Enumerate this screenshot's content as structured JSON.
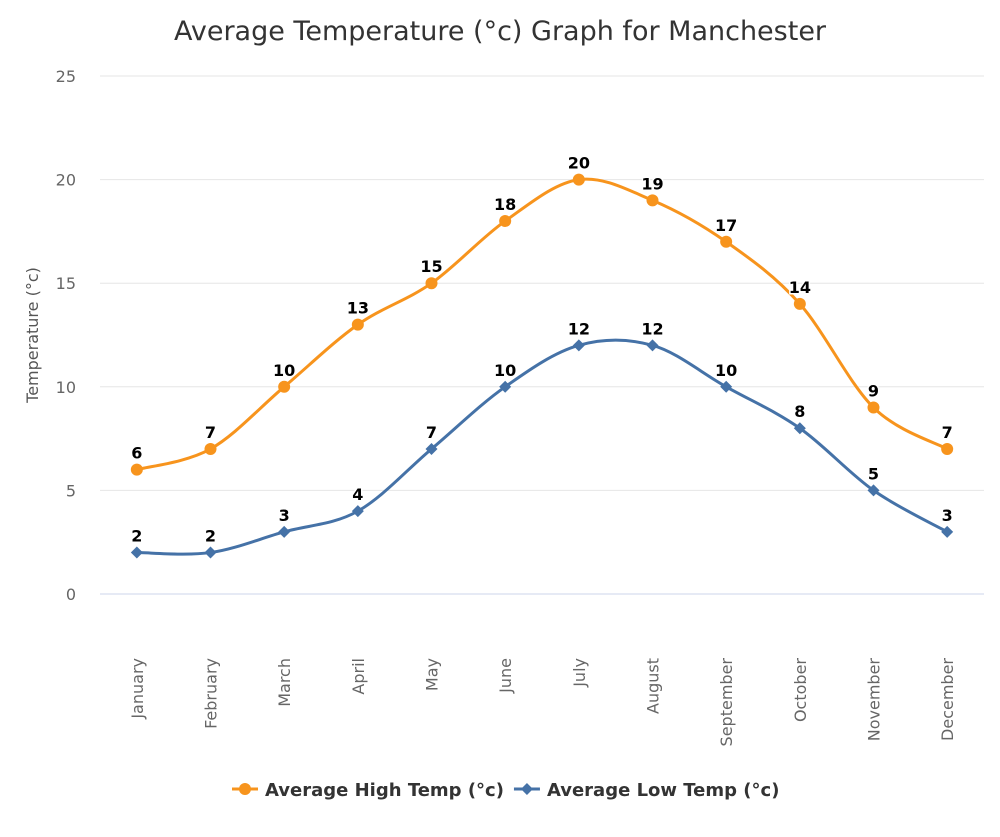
{
  "chart_data": {
    "type": "line",
    "title": "Average Temperature (°c) Graph for Manchester",
    "ylabel": "Temperature (°c)",
    "xlabel": "",
    "ylim": [
      0,
      25
    ],
    "yticks": [
      0,
      5,
      10,
      15,
      20,
      25
    ],
    "grid": true,
    "legend": "bottom-center",
    "categories": [
      "January",
      "February",
      "March",
      "April",
      "May",
      "June",
      "July",
      "August",
      "September",
      "October",
      "November",
      "December"
    ],
    "series": [
      {
        "name": "Average High Temp (°c)",
        "color": "#f7941d",
        "marker": "circle",
        "values": [
          6,
          7,
          10,
          13,
          15,
          18,
          20,
          19,
          17,
          14,
          9,
          7
        ]
      },
      {
        "name": "Average Low Temp (°c)",
        "color": "#4572a7",
        "marker": "diamond",
        "values": [
          2,
          2,
          3,
          4,
          7,
          10,
          12,
          12,
          10,
          8,
          5,
          3
        ]
      }
    ]
  }
}
